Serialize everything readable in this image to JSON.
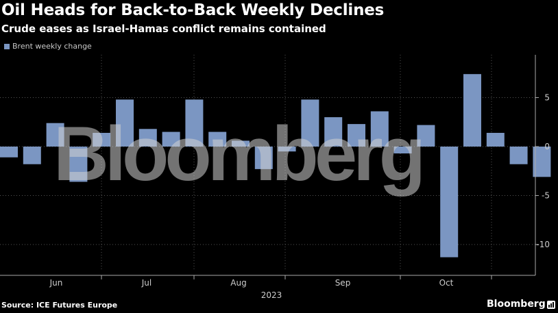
{
  "title": "Oil Heads for Back-to-Back Weekly Declines",
  "subtitle": "Crude eases as Israel-Hamas conflict remains contained",
  "source": "Source: ICE Futures Europe",
  "brand": "Bloomberg",
  "watermark": "Bloomberg",
  "colors": {
    "bar": "#7b96c2",
    "background": "#000000",
    "grid": "#555555",
    "text": "#cccccc"
  },
  "chart_data": {
    "type": "bar",
    "series": [
      {
        "name": "Brent weekly change",
        "values": [
          -1.1,
          -1.8,
          2.4,
          -3.6,
          1.4,
          4.8,
          1.8,
          1.5,
          4.8,
          1.5,
          0.6,
          -2.3,
          -0.5,
          4.8,
          3.0,
          2.3,
          3.6,
          -0.7,
          2.2,
          -11.3,
          7.4,
          1.4,
          -1.8,
          -3.1
        ]
      }
    ],
    "x_labels": [
      "Jun",
      "Jul",
      "Aug",
      "Sep",
      "Oct"
    ],
    "x_year_label": "2023",
    "y_ticks": [
      5,
      0,
      -5,
      -10
    ],
    "ylim": [
      -13,
      9.5
    ],
    "grid": true,
    "legend_position": "top-left"
  }
}
